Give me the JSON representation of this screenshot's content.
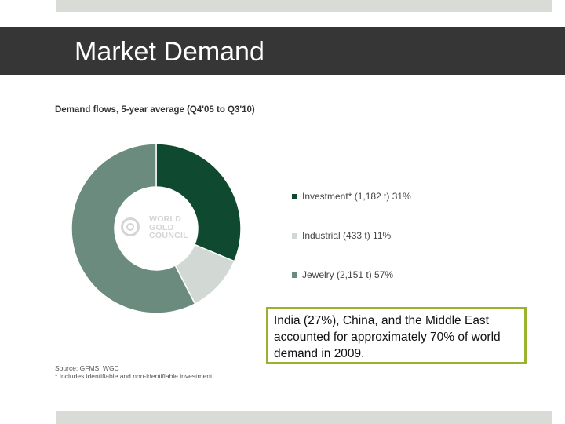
{
  "slide": {
    "title": "Market Demand"
  },
  "chart_data": {
    "type": "pie",
    "title": "Demand flows, 5-year average (Q4'05 to Q3'10)",
    "categories": [
      "Investment* (1,182 t) 31%",
      "Industrial (433 t) 11%",
      "Jewelry (2,151 t) 57%"
    ],
    "values": [
      31,
      11,
      57
    ],
    "tonnes": [
      1182,
      433,
      2151
    ],
    "colors": [
      "#0f4a30",
      "#d2d9d4",
      "#6a8b7d"
    ],
    "donut": true,
    "legend_position": "right",
    "center_logo": [
      "WORLD",
      "GOLD",
      "COUNCIL"
    ],
    "source": "Source: GFMS, WGC",
    "footnote": "* Includes identifiable and non-identifiable investment"
  },
  "callout": {
    "text": "India (27%), China, and the Middle East accounted for approximately 70% of world demand in 2009."
  }
}
